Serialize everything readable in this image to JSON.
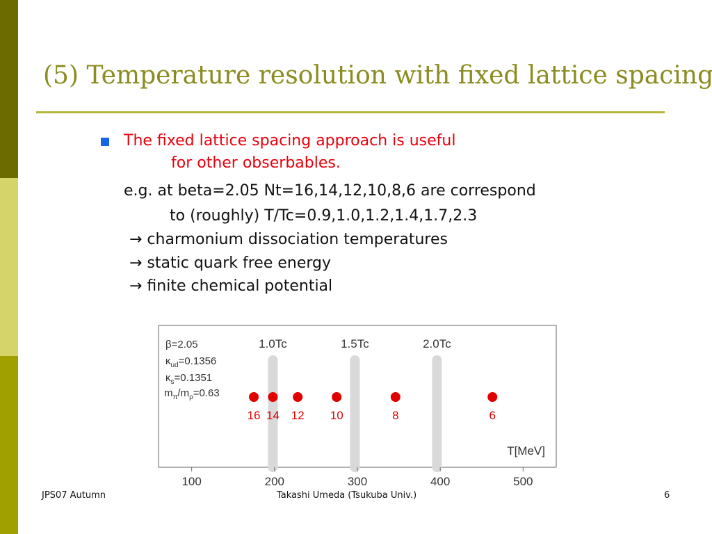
{
  "slide": {
    "title": "(5) Temperature resolution with fixed lattice spacing",
    "bullet_line1": "The fixed lattice spacing approach is useful",
    "bullet_line2": "for other obserbables.",
    "eg_line1": "e.g.  at beta=2.05 Nt=16,14,12,10,8,6 are correspond",
    "eg_line2": "to (roughly) T/Tc=0.9,1.0,1.2,1.4,1.7,2.3",
    "arrow_items": [
      "→ charmonium dissociation temperatures",
      "→ static quark free energy",
      "→ finite chemical potential"
    ],
    "accent_color": "#e8000d",
    "bullet_color": "#1565e6"
  },
  "chart_data": {
    "type": "scatter",
    "x_label": "T[MeV]",
    "xlim": [
      60,
      540
    ],
    "x_ticks": [
      100,
      200,
      300,
      400,
      500
    ],
    "params": [
      "β=2.05",
      "κ_ud=0.1356",
      "κ_s=0.1351",
      "m_π/m_ρ=0.63"
    ],
    "points": [
      {
        "x": 175,
        "label": "16"
      },
      {
        "x": 198,
        "label": "14"
      },
      {
        "x": 228,
        "label": "12"
      },
      {
        "x": 275,
        "label": "10"
      },
      {
        "x": 346,
        "label": "8"
      },
      {
        "x": 463,
        "label": "6"
      }
    ],
    "tc_lines": [
      {
        "x": 198,
        "label": "1.0Tc"
      },
      {
        "x": 297,
        "label": "1.5Tc"
      },
      {
        "x": 396,
        "label": "2.0Tc"
      }
    ],
    "point_color": "#e00000",
    "line_color": "#d9d9d9"
  },
  "footer": {
    "left": "JPS07 Autumn",
    "center": "Takashi Umeda (Tsukuba Univ.)",
    "right": "6"
  }
}
